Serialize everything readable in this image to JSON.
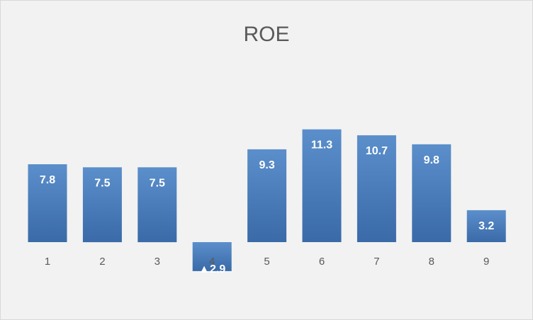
{
  "chart_data": {
    "type": "bar",
    "title": "ROE",
    "categories": [
      "1",
      "2",
      "3",
      "4",
      "5",
      "6",
      "7",
      "8",
      "9"
    ],
    "values": [
      7.8,
      7.5,
      7.5,
      -2.9,
      9.3,
      11.3,
      10.7,
      9.8,
      3.2
    ],
    "data_labels": [
      "7.8",
      "7.5",
      "7.5",
      "▲2.9",
      "9.3",
      "11.3",
      "10.7",
      "9.8",
      "3.2"
    ],
    "xlabel": "",
    "ylabel": "",
    "ylim": [
      -3,
      12
    ],
    "grid": false,
    "legend": "none",
    "colors": {
      "bar_top": "#5b8fcb",
      "bar_bottom": "#3a6aa8",
      "background": "#f2f2f2",
      "text": "#595959"
    }
  }
}
